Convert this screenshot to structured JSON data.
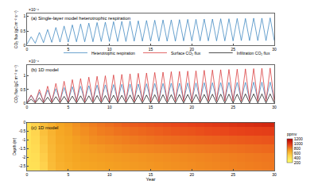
{
  "chart_data": [
    {
      "type": "line",
      "title": "(a) Single-layer model heterotrophic respiration",
      "ylabel": "CO₂ flux (gC m⁻² s⁻¹)",
      "annotations": [
        "×10⁻⁶"
      ],
      "x": [
        0,
        0.5,
        1,
        1.5,
        2,
        2.5,
        3,
        3.5,
        4,
        4.5,
        5,
        5.5,
        6,
        6.5,
        7,
        7.5,
        8,
        8.5,
        9,
        9.5,
        10,
        10.5,
        11,
        11.5,
        12,
        12.5,
        13,
        13.5,
        14,
        14.5,
        15,
        15.5,
        16,
        16.5,
        17,
        17.5,
        18,
        18.5,
        19,
        19.5,
        20,
        20.5,
        21,
        21.5,
        22,
        22.5,
        23,
        23.5,
        24,
        24.5,
        25,
        25.5,
        26,
        26.5,
        27,
        27.5,
        28,
        28.5,
        29,
        29.5,
        30
      ],
      "values": [
        0.05,
        0.3,
        0.08,
        0.45,
        0.1,
        0.55,
        0.11,
        0.62,
        0.12,
        0.67,
        0.12,
        0.71,
        0.13,
        0.74,
        0.13,
        0.77,
        0.13,
        0.79,
        0.14,
        0.8,
        0.14,
        0.82,
        0.14,
        0.83,
        0.14,
        0.84,
        0.15,
        0.85,
        0.15,
        0.86,
        0.15,
        0.87,
        0.15,
        0.88,
        0.15,
        0.88,
        0.15,
        0.89,
        0.16,
        0.9,
        0.16,
        0.9,
        0.16,
        0.91,
        0.16,
        0.91,
        0.16,
        0.92,
        0.16,
        0.92,
        0.16,
        0.93,
        0.17,
        0.93,
        0.17,
        0.94,
        0.17,
        0.94,
        0.17,
        0.95,
        0.17
      ],
      "color": "#2b7bba",
      "xlim": [
        0,
        30
      ],
      "xticks": [
        0,
        5,
        10,
        15,
        20,
        25,
        30
      ],
      "ylim": [
        0,
        1.1
      ],
      "yticks": [
        0,
        0.5,
        1
      ],
      "grid": false
    },
    {
      "type": "line",
      "title": "(b) 1D model",
      "ylabel": "CO₂ flux (gC m⁻² s⁻¹)",
      "annotations": [
        "×10⁻⁶"
      ],
      "legend": "top right",
      "x": [
        0,
        0.5,
        1,
        1.5,
        2,
        2.5,
        3,
        3.5,
        4,
        4.5,
        5,
        5.5,
        6,
        6.5,
        7,
        7.5,
        8,
        8.5,
        9,
        9.5,
        10,
        10.5,
        11,
        11.5,
        12,
        12.5,
        13,
        13.5,
        14,
        14.5,
        15,
        15.5,
        16,
        16.5,
        17,
        17.5,
        18,
        18.5,
        19,
        19.5,
        20,
        20.5,
        21,
        21.5,
        22,
        22.5,
        23,
        23.5,
        24,
        24.5,
        25,
        25.5,
        26,
        26.5,
        27,
        27.5,
        28,
        28.5,
        29,
        29.5,
        30
      ],
      "series": [
        {
          "name": "Heterotrophic respiration",
          "color": "#2b7bba",
          "values": [
            0.04,
            0.28,
            0.07,
            0.4,
            0.08,
            0.48,
            0.09,
            0.53,
            0.1,
            0.57,
            0.1,
            0.6,
            0.1,
            0.62,
            0.11,
            0.64,
            0.11,
            0.66,
            0.11,
            0.67,
            0.11,
            0.68,
            0.12,
            0.69,
            0.12,
            0.7,
            0.12,
            0.7,
            0.12,
            0.71,
            0.12,
            0.72,
            0.12,
            0.72,
            0.13,
            0.73,
            0.13,
            0.73,
            0.13,
            0.74,
            0.13,
            0.74,
            0.13,
            0.75,
            0.13,
            0.75,
            0.13,
            0.75,
            0.13,
            0.76,
            0.14,
            0.76,
            0.14,
            0.76,
            0.14,
            0.77,
            0.14,
            0.77,
            0.14,
            0.77,
            0.14
          ]
        },
        {
          "name": "Surface CO₂ flux",
          "color": "#d62728",
          "values": [
            0.02,
            0.3,
            0.03,
            0.5,
            0.04,
            0.62,
            0.04,
            0.72,
            0.05,
            0.8,
            0.05,
            0.86,
            0.05,
            0.9,
            0.05,
            0.95,
            0.06,
            0.98,
            0.06,
            1,
            0.06,
            1.03,
            0.06,
            1.05,
            0.06,
            1.07,
            0.06,
            1.09,
            0.07,
            1.1,
            0.07,
            1.12,
            0.07,
            1.13,
            0.07,
            1.15,
            0.07,
            1.16,
            0.07,
            1.17,
            0.07,
            1.18,
            0.07,
            1.2,
            0.08,
            1.21,
            0.08,
            1.22,
            0.08,
            1.23,
            0.08,
            1.24,
            0.08,
            1.25,
            0.08,
            1.26,
            0.08,
            1.27,
            0.08,
            1.28,
            0.08
          ]
        },
        {
          "name": "Infiltration CO₂ flux",
          "color": "#000000",
          "values": [
            0.01,
            0.15,
            0.01,
            0.2,
            0.01,
            0.22,
            0.01,
            0.24,
            0.01,
            0.25,
            0.01,
            0.26,
            0.01,
            0.27,
            0.01,
            0.27,
            0.01,
            0.28,
            0.01,
            0.28,
            0.01,
            0.29,
            0.01,
            0.29,
            0.01,
            0.3,
            0.01,
            0.3,
            0.01,
            0.3,
            0.01,
            0.31,
            0.01,
            0.31,
            0.01,
            0.31,
            0.01,
            0.32,
            0.01,
            0.32,
            0.01,
            0.32,
            0.01,
            0.32,
            0.01,
            0.33,
            0.01,
            0.33,
            0.01,
            0.33,
            0.01,
            0.33,
            0.01,
            0.34,
            0.01,
            0.34,
            0.01,
            0.34,
            0.01,
            0.34,
            0.01
          ]
        }
      ],
      "xlim": [
        0,
        30
      ],
      "xticks": [
        0,
        5,
        10,
        15,
        20,
        25,
        30
      ],
      "ylim": [
        0,
        1.4
      ],
      "yticks": [
        0,
        0.5,
        1
      ],
      "grid": false
    },
    {
      "type": "heatmap",
      "title": "(c) 1D model",
      "xlabel": "Year",
      "ylabel": "Depth (m)",
      "x": [
        0,
        1,
        2,
        3,
        4,
        5,
        6,
        7,
        8,
        9,
        10,
        11,
        12,
        13,
        14,
        15,
        16,
        17,
        18,
        19,
        20,
        21,
        22,
        23,
        24,
        25,
        26,
        27,
        28,
        29,
        30
      ],
      "y": [
        0,
        -0.5,
        -1,
        -1.5,
        -2,
        -2.5
      ],
      "z": [
        [
          400,
          500,
          600,
          650,
          700,
          720,
          750,
          780,
          800,
          820,
          840,
          860,
          880,
          890,
          900,
          910,
          920,
          930,
          940,
          950,
          960,
          970,
          980,
          990,
          1000,
          1010,
          1020,
          1030,
          1040,
          1050,
          1060
        ],
        [
          400,
          480,
          580,
          640,
          690,
          710,
          740,
          760,
          780,
          800,
          810,
          830,
          840,
          850,
          860,
          870,
          880,
          890,
          900,
          905,
          910,
          920,
          930,
          935,
          940,
          950,
          955,
          960,
          965,
          970,
          975
        ],
        [
          400,
          460,
          560,
          630,
          680,
          700,
          720,
          740,
          760,
          770,
          780,
          790,
          800,
          810,
          820,
          830,
          840,
          845,
          850,
          855,
          860,
          865,
          870,
          875,
          880,
          885,
          890,
          895,
          900,
          905,
          910
        ],
        [
          400,
          440,
          540,
          620,
          670,
          690,
          710,
          720,
          730,
          740,
          750,
          760,
          770,
          775,
          780,
          785,
          790,
          795,
          800,
          805,
          810,
          815,
          820,
          825,
          830,
          835,
          840,
          845,
          850,
          855,
          860
        ],
        [
          400,
          420,
          520,
          610,
          660,
          680,
          700,
          710,
          715,
          720,
          725,
          730,
          735,
          740,
          745,
          750,
          755,
          760,
          765,
          770,
          775,
          780,
          785,
          790,
          795,
          800,
          805,
          810,
          815,
          820,
          825
        ],
        [
          400,
          410,
          500,
          600,
          650,
          670,
          690,
          700,
          705,
          710,
          715,
          720,
          725,
          730,
          735,
          740,
          745,
          750,
          755,
          760,
          765,
          770,
          775,
          780,
          785,
          790,
          795,
          800,
          805,
          810,
          815
        ]
      ],
      "colorbar": {
        "title": "ppmv",
        "range": [
          200,
          1200
        ],
        "ticks": [
          200,
          400,
          600,
          800,
          1000,
          1200
        ]
      },
      "xlim": [
        0,
        30
      ],
      "xticks": [
        0,
        5,
        10,
        15,
        20,
        25,
        30
      ],
      "ylim": [
        -2.75,
        0
      ],
      "yticks": [
        -2.5,
        -2,
        -1.5,
        -1,
        -0.5,
        0
      ],
      "grid": false
    }
  ]
}
